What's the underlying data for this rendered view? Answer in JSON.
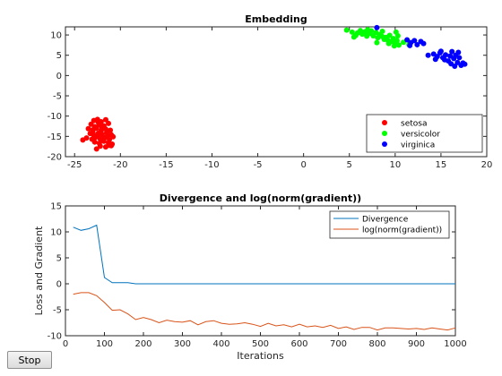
{
  "chart_data": [
    {
      "type": "scatter",
      "title": "Embedding",
      "xlabel": "",
      "ylabel": "",
      "xlim": [
        -26,
        20
      ],
      "ylim": [
        -20,
        12
      ],
      "xticks": [
        -25,
        -20,
        -15,
        -10,
        -5,
        0,
        5,
        10,
        15,
        20
      ],
      "yticks": [
        10,
        5,
        0,
        -5,
        -10,
        -15,
        -20
      ],
      "legend_position": "bottom-right",
      "series": [
        {
          "name": "setosa",
          "color": "#ff0000",
          "points": [
            [
              -22.9,
              -11.1
            ],
            [
              -22.5,
              -10.8
            ],
            [
              -22.1,
              -11.4
            ],
            [
              -21.6,
              -10.9
            ],
            [
              -23.2,
              -12.0
            ],
            [
              -22.8,
              -12.6
            ],
            [
              -22.3,
              -12.1
            ],
            [
              -21.8,
              -12.4
            ],
            [
              -21.3,
              -11.8
            ],
            [
              -23.5,
              -13.1
            ],
            [
              -23.0,
              -13.4
            ],
            [
              -22.6,
              -13.0
            ],
            [
              -22.1,
              -13.6
            ],
            [
              -21.6,
              -13.2
            ],
            [
              -21.1,
              -13.5
            ],
            [
              -23.3,
              -14.3
            ],
            [
              -22.9,
              -14.7
            ],
            [
              -22.4,
              -14.2
            ],
            [
              -22.0,
              -14.5
            ],
            [
              -21.5,
              -14.1
            ],
            [
              -21.0,
              -14.6
            ],
            [
              -23.7,
              -15.4
            ],
            [
              -23.1,
              -15.7
            ],
            [
              -22.7,
              -15.2
            ],
            [
              -22.2,
              -15.6
            ],
            [
              -21.7,
              -15.3
            ],
            [
              -21.2,
              -15.8
            ],
            [
              -20.8,
              -15.1
            ],
            [
              -22.8,
              -16.4
            ],
            [
              -22.3,
              -16.7
            ],
            [
              -21.8,
              -16.2
            ],
            [
              -21.3,
              -16.6
            ],
            [
              -20.9,
              -16.9
            ],
            [
              -22.2,
              -17.4
            ],
            [
              -21.6,
              -17.6
            ],
            [
              -21.2,
              -17.2
            ],
            [
              -22.6,
              -18.1
            ],
            [
              -24.1,
              -15.9
            ],
            [
              -22.0,
              -12.8
            ],
            [
              -21.4,
              -14.9
            ],
            [
              -22.5,
              -14.9
            ],
            [
              -23.0,
              -14.0
            ],
            [
              -21.9,
              -16.0
            ],
            [
              -22.4,
              -11.6
            ],
            [
              -21.0,
              -17.3
            ]
          ]
        },
        {
          "name": "versicolor",
          "color": "#00ff00",
          "points": [
            [
              4.7,
              11.2
            ],
            [
              5.3,
              10.7
            ],
            [
              5.7,
              9.9
            ],
            [
              5.9,
              10.5
            ],
            [
              6.2,
              11.1
            ],
            [
              6.4,
              10.2
            ],
            [
              6.7,
              10.8
            ],
            [
              6.9,
              9.7
            ],
            [
              7.2,
              10.4
            ],
            [
              7.4,
              11.0
            ],
            [
              7.6,
              9.8
            ],
            [
              7.9,
              10.6
            ],
            [
              8.1,
              9.3
            ],
            [
              8.3,
              10.1
            ],
            [
              8.6,
              9.6
            ],
            [
              8.8,
              8.9
            ],
            [
              9.0,
              9.4
            ],
            [
              9.2,
              8.7
            ],
            [
              9.4,
              9.9
            ],
            [
              9.6,
              8.4
            ],
            [
              9.8,
              9.1
            ],
            [
              10.0,
              7.9
            ],
            [
              10.2,
              8.6
            ],
            [
              10.4,
              7.5
            ],
            [
              10.3,
              9.8
            ],
            [
              10.1,
              10.7
            ],
            [
              9.3,
              7.9
            ],
            [
              8.6,
              10.9
            ],
            [
              11.5,
              7.6
            ],
            [
              10.9,
              8.2
            ],
            [
              9.9,
              7.3
            ],
            [
              5.5,
              9.5
            ],
            [
              7.0,
              11.3
            ],
            [
              8.0,
              8.1
            ]
          ]
        },
        {
          "name": "virginica",
          "color": "#0000ff",
          "points": [
            [
              8.0,
              11.8
            ],
            [
              11.3,
              8.8
            ],
            [
              11.7,
              8.1
            ],
            [
              12.1,
              8.6
            ],
            [
              12.4,
              7.6
            ],
            [
              12.8,
              8.4
            ],
            [
              13.1,
              7.9
            ],
            [
              11.6,
              7.4
            ],
            [
              14.2,
              5.3
            ],
            [
              14.6,
              4.7
            ],
            [
              14.9,
              5.6
            ],
            [
              15.2,
              4.4
            ],
            [
              15.5,
              5.1
            ],
            [
              15.8,
              3.6
            ],
            [
              16.0,
              4.8
            ],
            [
              16.2,
              5.9
            ],
            [
              16.4,
              4.2
            ],
            [
              16.6,
              5.0
            ],
            [
              16.8,
              3.2
            ],
            [
              17.0,
              4.4
            ],
            [
              17.2,
              2.5
            ],
            [
              17.4,
              3.1
            ],
            [
              16.1,
              2.9
            ],
            [
              15.4,
              3.9
            ],
            [
              16.9,
              5.7
            ],
            [
              13.6,
              5.0
            ],
            [
              15.0,
              6.0
            ],
            [
              14.4,
              4.0
            ],
            [
              16.5,
              2.3
            ],
            [
              17.6,
              2.8
            ]
          ]
        }
      ]
    },
    {
      "type": "line",
      "title": "Divergence and log(norm(gradient))",
      "xlabel": "Iterations",
      "ylabel": "Loss and Gradient",
      "xlim": [
        0,
        1000
      ],
      "ylim": [
        -10,
        15
      ],
      "xticks": [
        0,
        100,
        200,
        300,
        400,
        500,
        600,
        700,
        800,
        900,
        1000
      ],
      "yticks": [
        15,
        10,
        5,
        0,
        -5,
        -10
      ],
      "legend_position": "top-right",
      "x": [
        20,
        40,
        60,
        80,
        100,
        120,
        140,
        160,
        180,
        200,
        220,
        240,
        260,
        280,
        300,
        320,
        340,
        360,
        380,
        400,
        420,
        440,
        460,
        480,
        500,
        520,
        540,
        560,
        580,
        600,
        620,
        640,
        660,
        680,
        700,
        720,
        740,
        760,
        780,
        800,
        820,
        840,
        860,
        880,
        900,
        920,
        940,
        960,
        980,
        1000
      ],
      "series": [
        {
          "name": "Divergence",
          "color": "#0072bd",
          "values": [
            10.9,
            10.3,
            10.6,
            11.3,
            1.2,
            0.2,
            0.2,
            0.2,
            0.0,
            0.0,
            0.0,
            0.0,
            0.0,
            0.0,
            0.0,
            0.0,
            0.0,
            0.0,
            0.0,
            0.0,
            0.0,
            0.0,
            0.0,
            0.0,
            0.0,
            0.0,
            0.0,
            0.0,
            0.0,
            0.0,
            0.0,
            0.0,
            0.0,
            0.0,
            0.0,
            0.0,
            0.0,
            0.0,
            0.0,
            0.0,
            0.0,
            0.0,
            0.0,
            0.0,
            0.0,
            0.0,
            0.0,
            0.0,
            0.0,
            0.0
          ]
        },
        {
          "name": "log(norm(gradient))",
          "color": "#d95319",
          "values": [
            -2.0,
            -1.7,
            -1.7,
            -2.3,
            -3.6,
            -5.1,
            -5.0,
            -5.8,
            -6.9,
            -6.5,
            -6.9,
            -7.5,
            -7.0,
            -7.3,
            -7.4,
            -7.1,
            -7.9,
            -7.3,
            -7.1,
            -7.6,
            -7.8,
            -7.7,
            -7.5,
            -7.8,
            -8.2,
            -7.6,
            -8.1,
            -7.9,
            -8.3,
            -7.8,
            -8.3,
            -8.1,
            -8.4,
            -8.0,
            -8.6,
            -8.3,
            -8.8,
            -8.4,
            -8.4,
            -8.9,
            -8.5,
            -8.5,
            -8.6,
            -8.7,
            -8.6,
            -8.8,
            -8.5,
            -8.7,
            -8.9,
            -8.5
          ]
        }
      ]
    }
  ],
  "controls": {
    "stop_label": "Stop"
  }
}
